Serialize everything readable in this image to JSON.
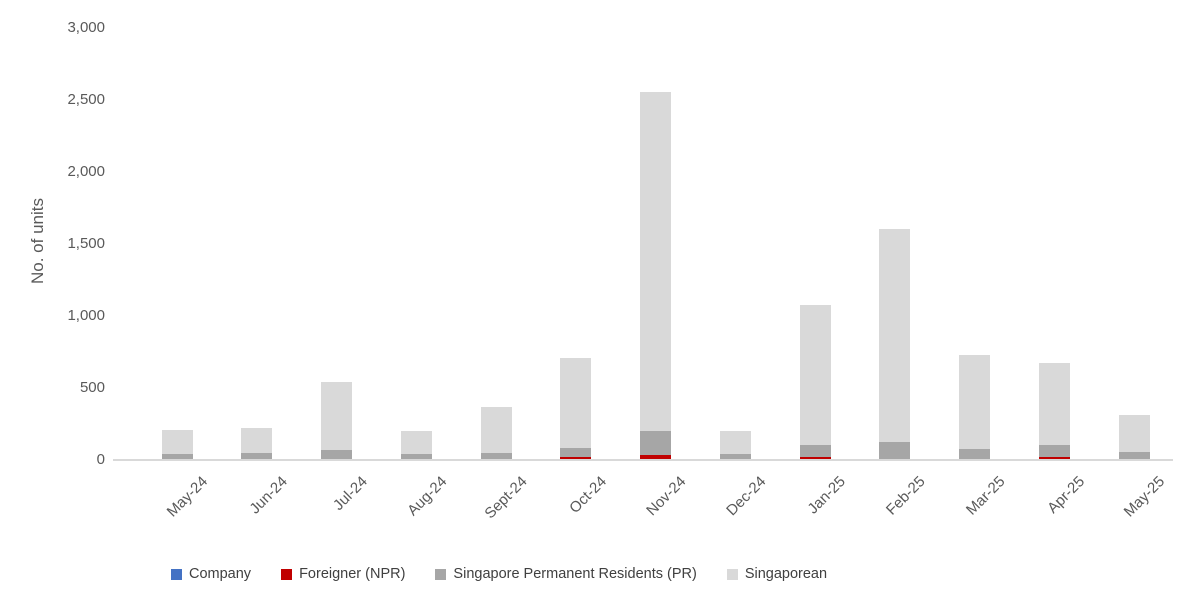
{
  "chart_data": {
    "type": "bar",
    "stacked": true,
    "title": "",
    "xlabel": "",
    "ylabel": "No. of units",
    "ylim": [
      0,
      3000
    ],
    "ytick_step": 500,
    "ytick_labels": [
      "0",
      "500",
      "1,000",
      "1,500",
      "2,000",
      "2,500",
      "3,000"
    ],
    "grid": false,
    "legend_position": "bottom",
    "axis_color": "#d9d9d9",
    "tick_label_color": "#595959",
    "legend_text_color": "#404040",
    "categories": [
      "May-24",
      "Jun-24",
      "Jul-24",
      "Aug-24",
      "Sept-24",
      "Oct-24",
      "Nov-24",
      "Dec-24",
      "Jan-25",
      "Feb-25",
      "Mar-25",
      "Apr-25",
      "May-25"
    ],
    "series": [
      {
        "name": "Company",
        "color": "#4472c4",
        "values": [
          0,
          0,
          0,
          0,
          0,
          0,
          0,
          0,
          0,
          0,
          0,
          0,
          0
        ]
      },
      {
        "name": "Foreigner (NPR)",
        "color": "#c00000",
        "values": [
          0,
          0,
          0,
          0,
          0,
          16,
          25,
          0,
          15,
          0,
          0,
          14,
          0
        ]
      },
      {
        "name": "Singapore Permanent Residents (PR)",
        "color": "#a6a6a6",
        "values": [
          35,
          42,
          60,
          32,
          40,
          58,
          172,
          33,
          85,
          116,
          72,
          82,
          48
        ]
      },
      {
        "name": "Singaporean",
        "color": "#d9d9d9",
        "values": [
          165,
          170,
          475,
          162,
          320,
          625,
          2353,
          163,
          968,
          1484,
          653,
          570,
          257
        ]
      }
    ],
    "totals": [
      200,
      212,
      535,
      194,
      360,
      699,
      2550,
      196,
      1068,
      1600,
      725,
      666,
      305
    ]
  }
}
